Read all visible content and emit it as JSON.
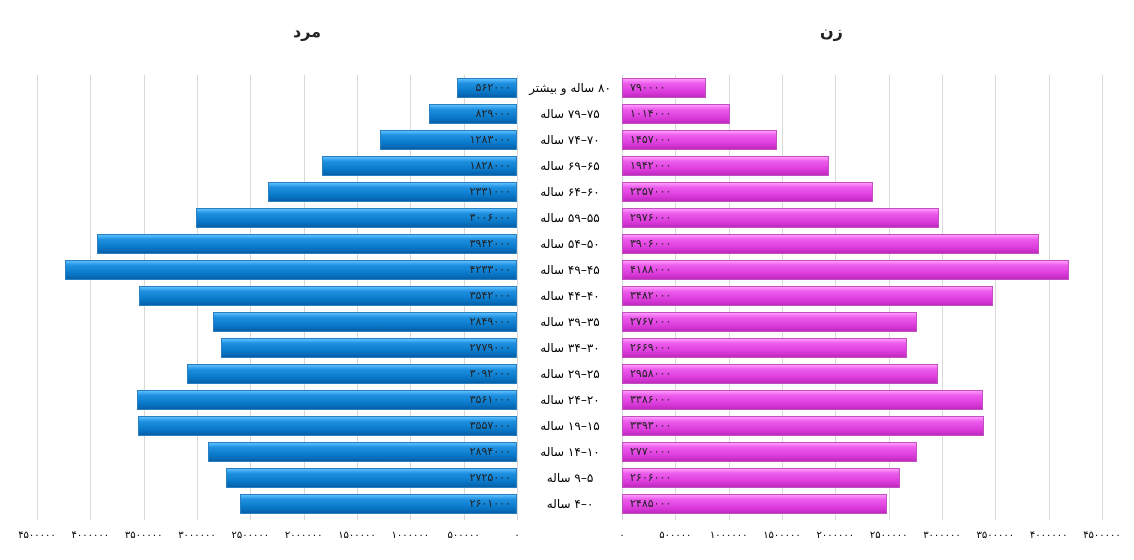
{
  "chart_data": {
    "type": "bar",
    "subtype": "population-pyramid",
    "categories": [
      "۸۰ ساله و بیشتر",
      "۷۵–۷۹ ساله",
      "۷۰–۷۴ ساله",
      "۶۵–۶۹ ساله",
      "۶۰–۶۴ ساله",
      "۵۵–۵۹ ساله",
      "۵۰–۵۴ ساله",
      "۴۵–۴۹ ساله",
      "۴۰–۴۴ ساله",
      "۳۵–۳۹ ساله",
      "۳۰–۳۴ ساله",
      "۲۵–۲۹ ساله",
      "۲۰–۲۴ ساله",
      "۱۵–۱۹ ساله",
      "۱۰–۱۴ ساله",
      "۵–۹ ساله",
      "۰–۴ ساله"
    ],
    "series": [
      {
        "name": "مرد",
        "color": "#1e8fe0",
        "values": [
          562000,
          829000,
          1283000,
          1828000,
          2331000,
          3006000,
          3942000,
          4233000,
          3542000,
          2849000,
          2779000,
          3092000,
          3561000,
          3557000,
          2894000,
          2725000,
          2601000
        ]
      },
      {
        "name": "زن",
        "color": "#e040e0",
        "values": [
          790000,
          1014000,
          1457000,
          1942000,
          2357000,
          2976000,
          3906000,
          4188000,
          3482000,
          2767000,
          2669000,
          2958000,
          3386000,
          3393000,
          2770000,
          2606000,
          2485000
        ]
      }
    ],
    "xlim": [
      0,
      4500000
    ],
    "tick_step": 500000,
    "grid": true,
    "titles": {
      "male": "مرد",
      "female": "زن"
    }
  }
}
